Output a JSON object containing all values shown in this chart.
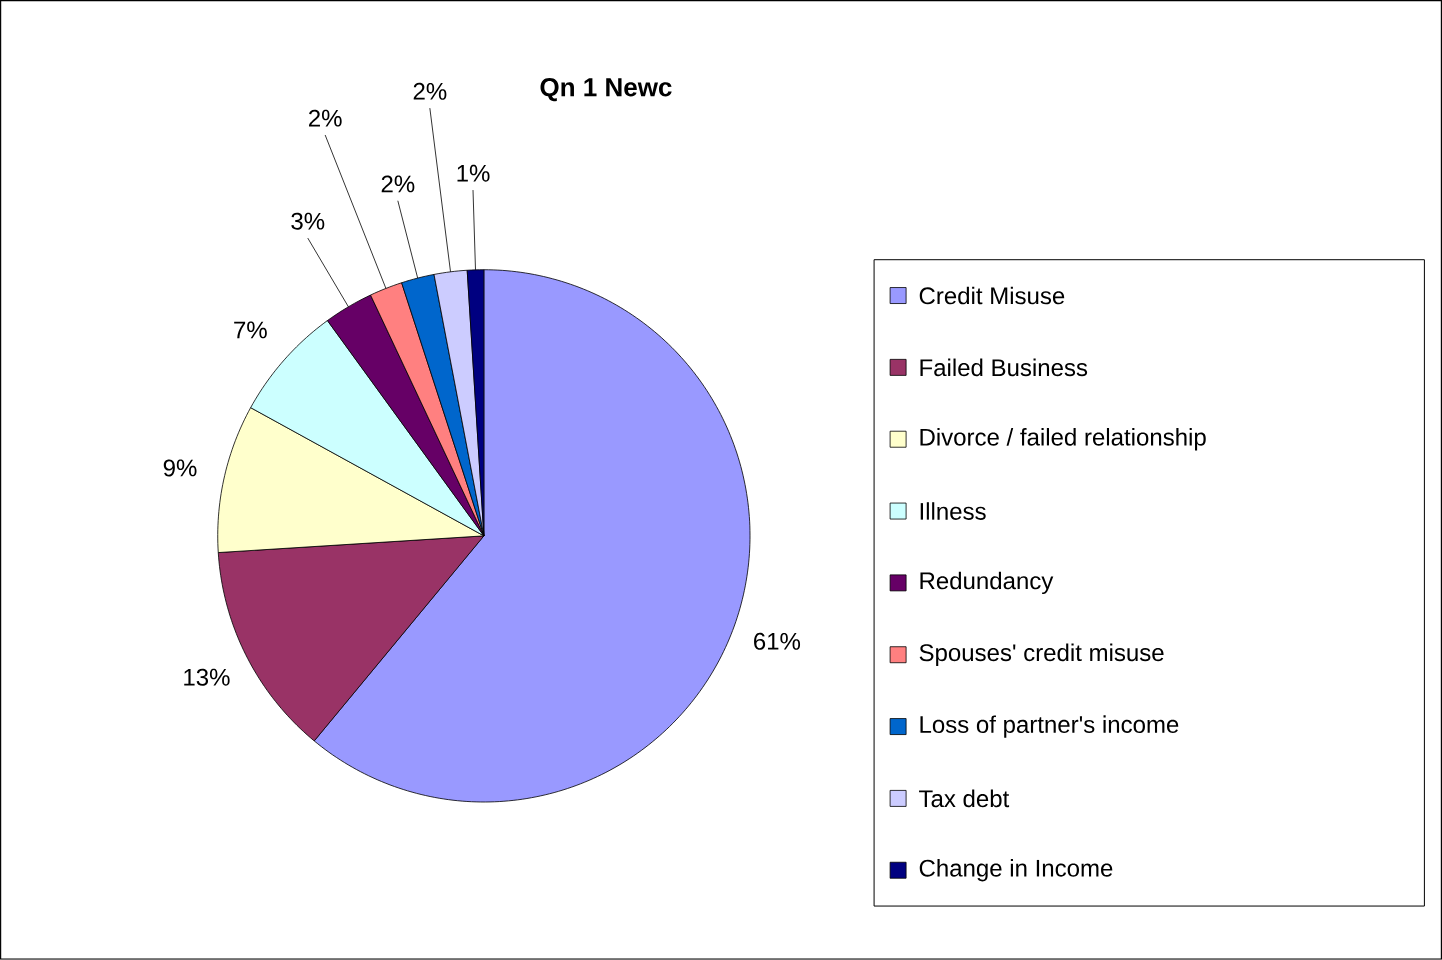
{
  "chart_data": {
    "type": "pie",
    "title": "Qn 1 Newc",
    "categories": [
      "Credit Misuse",
      "Failed Business",
      "Divorce / failed relationship",
      "Illness",
      "Redundancy",
      "Spouses' credit misuse",
      "Loss of partner's income",
      "Tax debt",
      "Change in Income"
    ],
    "values": [
      61,
      13,
      9,
      7,
      3,
      2,
      2,
      2,
      1
    ],
    "value_labels": [
      "61%",
      "13%",
      "9%",
      "7%",
      "3%",
      "2%",
      "2%",
      "2%",
      "1%"
    ],
    "colors": [
      "#9999ff",
      "#993366",
      "#ffffcc",
      "#ccffff",
      "#660066",
      "#ff8080",
      "#0066cc",
      "#ccccff",
      "#000080"
    ],
    "legend": "right"
  }
}
